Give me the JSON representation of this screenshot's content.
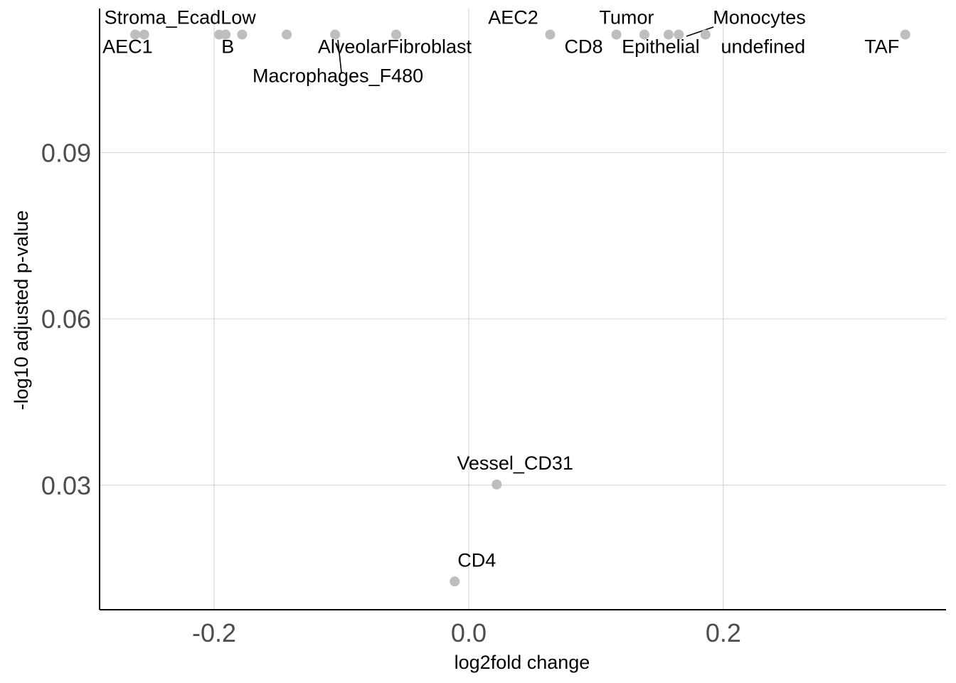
{
  "chart_data": {
    "type": "scatter",
    "xlabel": "log2fold change",
    "ylabel": "-log10 adjusted p-value",
    "x_ticks": [
      -0.2,
      0.0,
      0.2
    ],
    "y_ticks": [
      0.03,
      0.06,
      0.09
    ],
    "x_tick_labels": [
      "-0.2",
      "0.0",
      "0.2"
    ],
    "y_tick_labels": [
      "0.03",
      "0.06",
      "0.09"
    ],
    "xlim": [
      -0.29,
      0.375
    ],
    "ylim": [
      0.0075,
      0.116
    ],
    "grid": true,
    "point_color": "#bebebe",
    "points": [
      {
        "label": "AEC1",
        "x": -0.262,
        "y": 0.1113
      },
      {
        "label": "Stroma_EcadLow",
        "x": -0.255,
        "y": 0.1113
      },
      {
        "label": "B",
        "x": -0.196,
        "y": 0.1113
      },
      {
        "label": "",
        "x": -0.191,
        "y": 0.1113
      },
      {
        "label": "",
        "x": -0.178,
        "y": 0.1113
      },
      {
        "label": "",
        "x": -0.143,
        "y": 0.1113
      },
      {
        "label": "Macrophages_F480",
        "x": -0.105,
        "y": 0.1113
      },
      {
        "label": "AlveolarFibroblast",
        "x": -0.057,
        "y": 0.1113
      },
      {
        "label": "AEC2",
        "x": 0.064,
        "y": 0.1113
      },
      {
        "label": "CD8",
        "x": 0.116,
        "y": 0.1113
      },
      {
        "label": "Tumor",
        "x": 0.138,
        "y": 0.1113
      },
      {
        "label": "Epithelial",
        "x": 0.157,
        "y": 0.1113
      },
      {
        "label": "Monocytes",
        "x": 0.165,
        "y": 0.1113
      },
      {
        "label": "undefined",
        "x": 0.186,
        "y": 0.1113
      },
      {
        "label": "TAF",
        "x": 0.343,
        "y": 0.1113
      },
      {
        "label": "Vessel_CD31",
        "x": 0.022,
        "y": 0.0301
      },
      {
        "label": "CD4",
        "x": -0.011,
        "y": 0.0126
      }
    ]
  }
}
